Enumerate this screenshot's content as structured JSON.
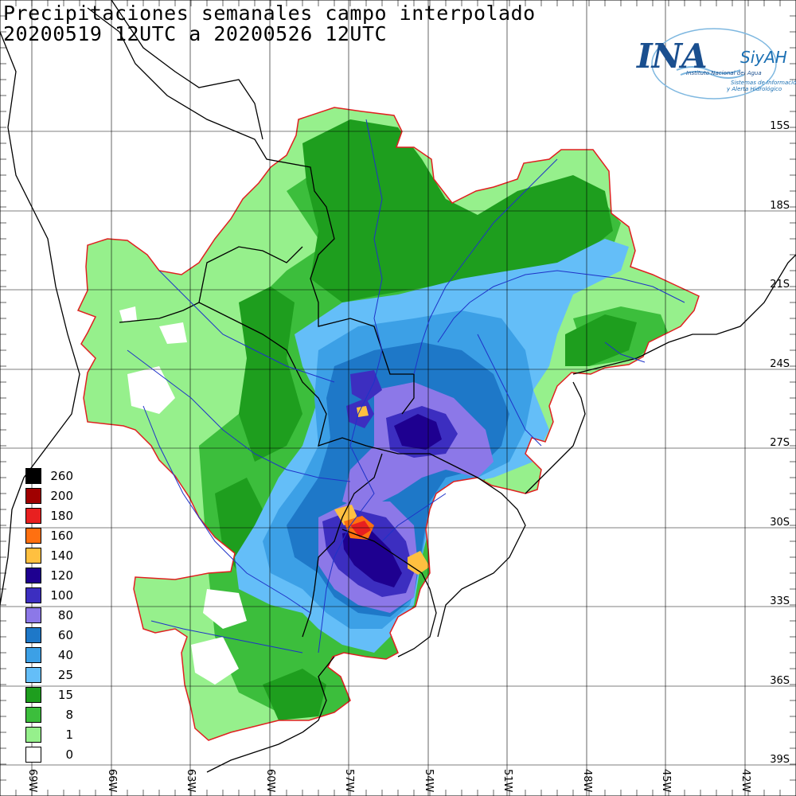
{
  "title": {
    "line1": "Precipitaciones semanales campo interpolado",
    "line2": "20200519 12UTC a 20200526 12UTC"
  },
  "logo": {
    "main": "INA",
    "brand": "SiyAH",
    "subtitle": "Instituto Nacional del Agua",
    "tagline1": "Sistemas de Información",
    "tagline2": "y Alerta Hidrológico"
  },
  "latitude_labels": [
    "15S",
    "18S",
    "21S",
    "24S",
    "27S",
    "30S",
    "33S",
    "36S",
    "39S"
  ],
  "longitude_labels": [
    "69W",
    "66W",
    "63W",
    "60W",
    "57W",
    "54W",
    "51W",
    "48W",
    "45W",
    "42W"
  ],
  "legend": {
    "unit": "",
    "items": [
      {
        "label": "260",
        "color": "#000000"
      },
      {
        "label": "200",
        "color": "#a00000"
      },
      {
        "label": "180",
        "color": "#e82020"
      },
      {
        "label": "160",
        "color": "#ff7010"
      },
      {
        "label": "140",
        "color": "#ffc040"
      },
      {
        "label": "120",
        "color": "#1e0090"
      },
      {
        "label": "100",
        "color": "#3c2ec0"
      },
      {
        "label": "80",
        "color": "#8c78e8"
      },
      {
        "label": "60",
        "color": "#1e78c8"
      },
      {
        "label": "40",
        "color": "#3ca0e6"
      },
      {
        "label": "25",
        "color": "#64bef8"
      },
      {
        "label": "15",
        "color": "#1e9e1e"
      },
      {
        "label": "8",
        "color": "#3cbe3c"
      },
      {
        "label": "1",
        "color": "#96f08c"
      },
      {
        "label": "0",
        "color": "#ffffff"
      }
    ]
  },
  "colors": {
    "basin_outline": "#e02020",
    "rivers": "#1e32c8",
    "borders": "#000000",
    "grid": "#000000"
  }
}
